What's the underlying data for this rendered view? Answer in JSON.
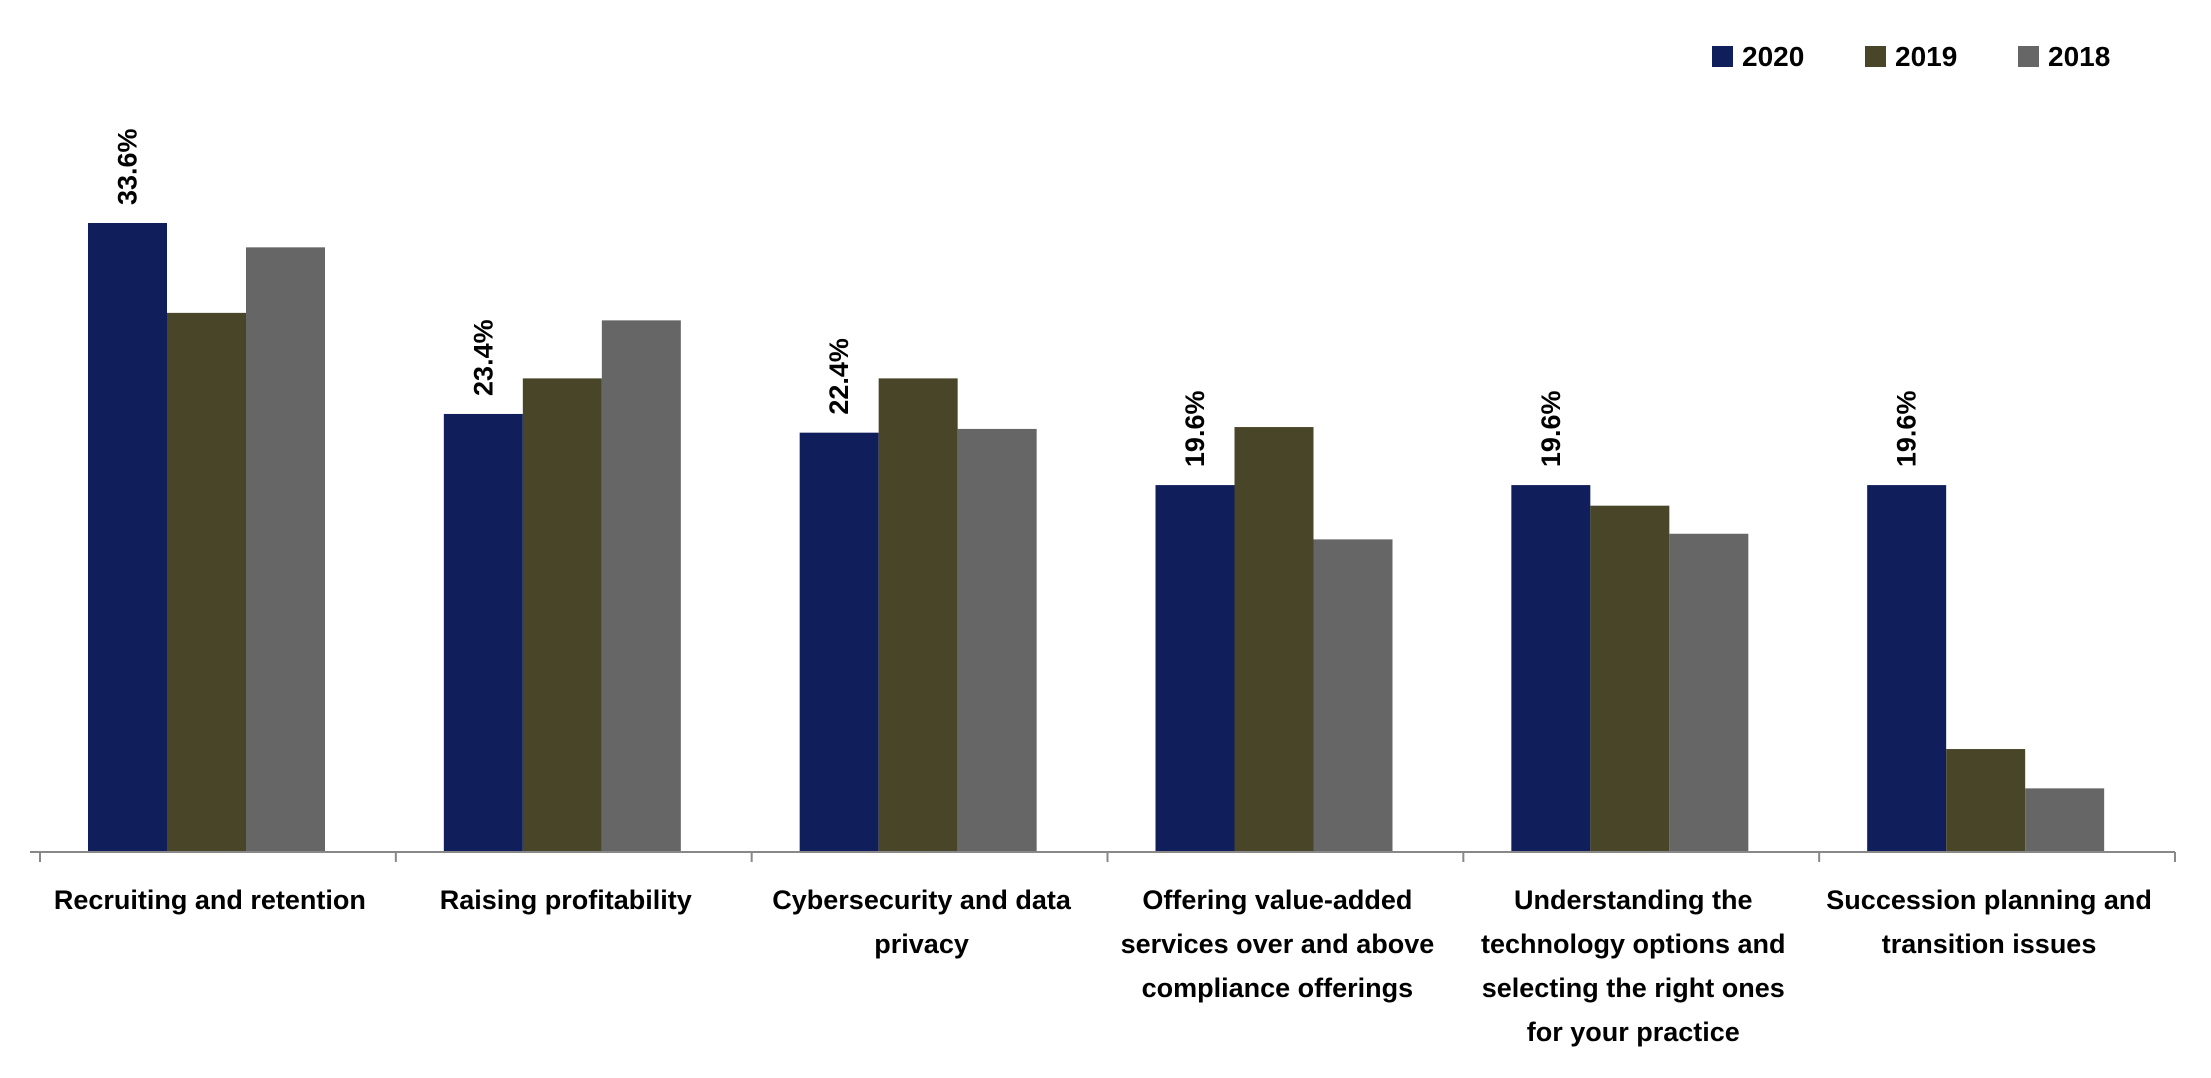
{
  "chart_data": {
    "type": "bar",
    "title": "",
    "xlabel": "",
    "ylabel": "",
    "ylim": [
      0,
      36
    ],
    "grid": false,
    "legend_position": "top-right",
    "categories": [
      "Recruiting and retention",
      "Raising profitability",
      "Cybersecurity and data privacy",
      "Offering value-added services over and above compliance offerings",
      "Understanding the technology options and selecting the right ones for your practice",
      "Succession planning and transition issues"
    ],
    "series": [
      {
        "name": "2020",
        "color": "#111E5C",
        "values": [
          33.6,
          23.4,
          22.4,
          19.6,
          19.6,
          19.6
        ],
        "labels": [
          "33.6%",
          "23.4%",
          "22.4%",
          "19.6%",
          "19.6%",
          "19.6%"
        ]
      },
      {
        "name": "2019",
        "color": "#494528",
        "values": [
          28.8,
          25.3,
          25.3,
          22.7,
          18.5,
          5.5
        ]
      },
      {
        "name": "2018",
        "color": "#666666",
        "values": [
          32.3,
          28.4,
          22.6,
          16.7,
          17.0,
          3.4
        ]
      }
    ]
  }
}
